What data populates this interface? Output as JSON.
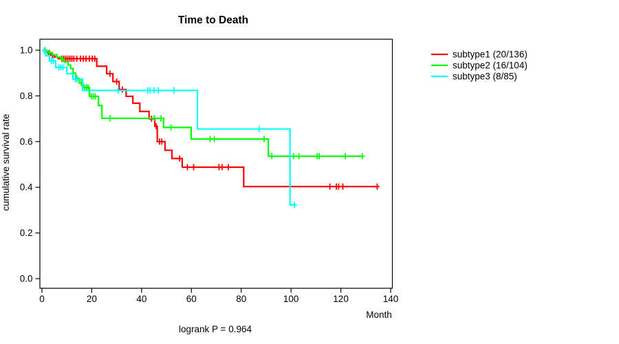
{
  "title": "Time to Death",
  "footer": "logrank P = 0.964",
  "x_axis": {
    "label": "Month",
    "tick_labels": [
      "0",
      "20",
      "40",
      "60",
      "80",
      "100",
      "120",
      "140"
    ],
    "tick_values": [
      0,
      20,
      40,
      60,
      80,
      100,
      120,
      140
    ],
    "range": [
      0,
      140
    ]
  },
  "y_axis": {
    "label": "cumulative survival rate",
    "tick_labels": [
      "1.0",
      "0.8",
      "0.6",
      "0.4",
      "0.2",
      "0.0"
    ],
    "tick_values": [
      1.0,
      0.8,
      0.6,
      0.4,
      0.2,
      0.0
    ],
    "range": [
      0,
      1
    ]
  },
  "legend": [
    {
      "label": "subtype1 (20/136)",
      "color": "#ff0000"
    },
    {
      "label": "subtype2 (16/104)",
      "color": "#00ff00"
    },
    {
      "label": "subtype3 (8/85)",
      "color": "#00ffff"
    }
  ],
  "colors": {
    "subtype1": "#ff0000",
    "subtype2": "#00ff00",
    "subtype3": "#00ffff",
    "axis": "#000000",
    "background": "#ffffff"
  },
  "chart_data": {
    "type": "line",
    "line_style": "step-after",
    "title": "Time to Death",
    "xlabel": "Month",
    "ylabel": "cumulative survival rate",
    "xlim": [
      0,
      140
    ],
    "ylim": [
      0,
      1
    ],
    "grid": false,
    "legend_position": "right-outside",
    "annotation": "logrank P = 0.964",
    "series": [
      {
        "name": "subtype1 (20/136)",
        "color": "#ff0000",
        "steps": [
          [
            0,
            1.0
          ],
          [
            1.5,
            0.993
          ],
          [
            2.5,
            0.985
          ],
          [
            3.5,
            0.978
          ],
          [
            5,
            0.97
          ],
          [
            6.5,
            0.963
          ],
          [
            22,
            0.93
          ],
          [
            26,
            0.897
          ],
          [
            28.5,
            0.863
          ],
          [
            31,
            0.828
          ],
          [
            33.8,
            0.798
          ],
          [
            36.5,
            0.768
          ],
          [
            39.3,
            0.732
          ],
          [
            43,
            0.7
          ],
          [
            45.3,
            0.667
          ],
          [
            46.3,
            0.6
          ],
          [
            49.4,
            0.562
          ],
          [
            52.2,
            0.526
          ],
          [
            56.3,
            0.488
          ],
          [
            81,
            0.403
          ]
        ],
        "end_time": 135.5,
        "censor_marks": [
          [
            2.8,
            0.985
          ],
          [
            4.2,
            0.978
          ],
          [
            8,
            0.963
          ],
          [
            8.8,
            0.963
          ],
          [
            9.6,
            0.963
          ],
          [
            10.4,
            0.963
          ],
          [
            11.2,
            0.963
          ],
          [
            12,
            0.963
          ],
          [
            12.8,
            0.963
          ],
          [
            14,
            0.963
          ],
          [
            15.5,
            0.963
          ],
          [
            16.6,
            0.963
          ],
          [
            17.7,
            0.963
          ],
          [
            19,
            0.963
          ],
          [
            20.2,
            0.963
          ],
          [
            21.2,
            0.963
          ],
          [
            27.3,
            0.897
          ],
          [
            30,
            0.863
          ],
          [
            32.3,
            0.828
          ],
          [
            44,
            0.7
          ],
          [
            45.9,
            0.667
          ],
          [
            47.2,
            0.6
          ],
          [
            48.1,
            0.6
          ],
          [
            55.3,
            0.526
          ],
          [
            58.4,
            0.488
          ],
          [
            60.9,
            0.488
          ],
          [
            71.1,
            0.488
          ],
          [
            72.3,
            0.488
          ],
          [
            74.8,
            0.488
          ],
          [
            115.6,
            0.403
          ],
          [
            118.2,
            0.403
          ],
          [
            119.1,
            0.403
          ],
          [
            120.8,
            0.403
          ],
          [
            134.6,
            0.403
          ]
        ]
      },
      {
        "name": "subtype2 (16/104)",
        "color": "#00ff00",
        "steps": [
          [
            0,
            1.0
          ],
          [
            2,
            0.99
          ],
          [
            4,
            0.98
          ],
          [
            6,
            0.97
          ],
          [
            7.5,
            0.96
          ],
          [
            9,
            0.949
          ],
          [
            10.5,
            0.935
          ],
          [
            11.5,
            0.92
          ],
          [
            12.5,
            0.9
          ],
          [
            13.5,
            0.877
          ],
          [
            15,
            0.856
          ],
          [
            16.5,
            0.837
          ],
          [
            19.1,
            0.798
          ],
          [
            22.7,
            0.758
          ],
          [
            24.1,
            0.702
          ],
          [
            48.8,
            0.662
          ],
          [
            59.9,
            0.611
          ],
          [
            90.9,
            0.536
          ]
        ],
        "end_time": 129.5,
        "censor_marks": [
          [
            1.2,
            1.0
          ],
          [
            3,
            0.99
          ],
          [
            8.2,
            0.96
          ],
          [
            14,
            0.877
          ],
          [
            15.8,
            0.856
          ],
          [
            17.2,
            0.837
          ],
          [
            18,
            0.837
          ],
          [
            18.6,
            0.837
          ],
          [
            19.8,
            0.798
          ],
          [
            20.6,
            0.798
          ],
          [
            21.4,
            0.798
          ],
          [
            27.3,
            0.702
          ],
          [
            45.1,
            0.702
          ],
          [
            47.8,
            0.702
          ],
          [
            51.8,
            0.662
          ],
          [
            67.5,
            0.611
          ],
          [
            69.2,
            0.611
          ],
          [
            89.2,
            0.611
          ],
          [
            92.3,
            0.536
          ],
          [
            101,
            0.536
          ],
          [
            103.2,
            0.536
          ],
          [
            110.5,
            0.536
          ],
          [
            111.3,
            0.536
          ],
          [
            121.8,
            0.536
          ],
          [
            128.6,
            0.536
          ]
        ]
      },
      {
        "name": "subtype3 (8/85)",
        "color": "#00ffff",
        "steps": [
          [
            0,
            1.0
          ],
          [
            1.5,
            0.976
          ],
          [
            3,
            0.953
          ],
          [
            5.5,
            0.925
          ],
          [
            10,
            0.897
          ],
          [
            12.4,
            0.873
          ],
          [
            16.3,
            0.824
          ],
          [
            62.4,
            0.655
          ],
          [
            99.6,
            0.323
          ]
        ],
        "end_time": 102.3,
        "censor_marks": [
          [
            0.9,
            1.0
          ],
          [
            3.8,
            0.953
          ],
          [
            4.6,
            0.953
          ],
          [
            6.8,
            0.925
          ],
          [
            7.6,
            0.925
          ],
          [
            8.4,
            0.925
          ],
          [
            13.4,
            0.873
          ],
          [
            14.2,
            0.873
          ],
          [
            30.6,
            0.824
          ],
          [
            42.5,
            0.824
          ],
          [
            43.4,
            0.824
          ],
          [
            45,
            0.824
          ],
          [
            46.7,
            0.824
          ],
          [
            53,
            0.824
          ],
          [
            87.2,
            0.655
          ],
          [
            101.3,
            0.323
          ]
        ]
      }
    ]
  }
}
